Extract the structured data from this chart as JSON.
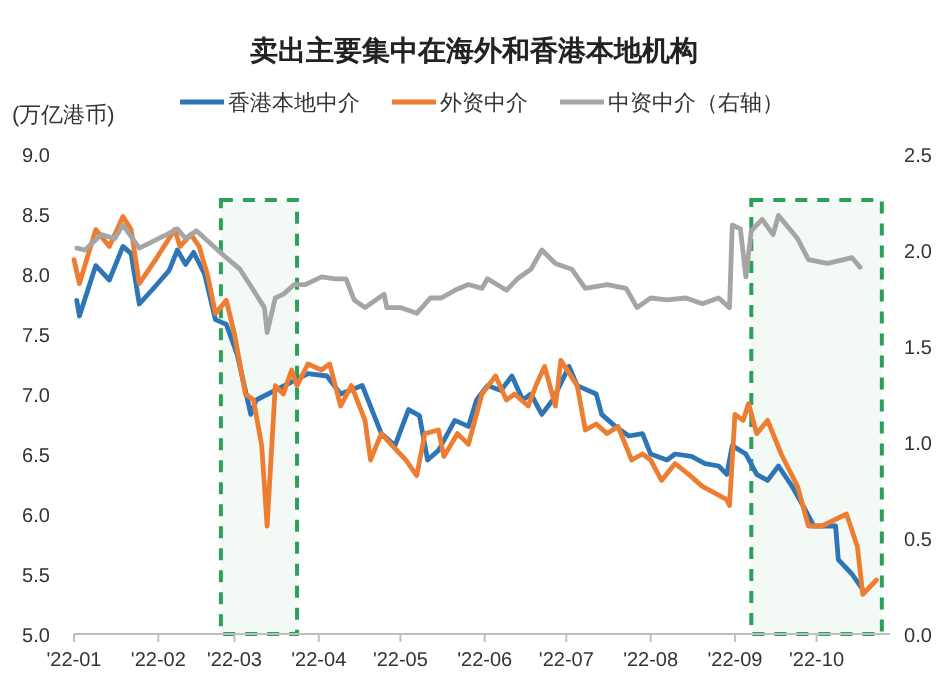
{
  "chart_data": {
    "type": "line",
    "title": "卖出主要集中在海外和香港本地机构",
    "ylabel": "(万亿港币)",
    "legend": "top",
    "xlim": [
      "2022-01-01",
      "2022-10-28"
    ],
    "xticks": [
      {
        "value": "2022-01-01",
        "label": "'22-01"
      },
      {
        "value": "2022-02-01",
        "label": "'22-02"
      },
      {
        "value": "2022-03-01",
        "label": "'22-03"
      },
      {
        "value": "2022-04-01",
        "label": "'22-04"
      },
      {
        "value": "2022-05-01",
        "label": "'22-05"
      },
      {
        "value": "2022-06-01",
        "label": "'22-06"
      },
      {
        "value": "2022-07-01",
        "label": "'22-07"
      },
      {
        "value": "2022-08-01",
        "label": "'22-08"
      },
      {
        "value": "2022-09-01",
        "label": "'22-09"
      },
      {
        "value": "2022-10-01",
        "label": "'22-10"
      }
    ],
    "ylim": [
      5,
      9
    ],
    "yticks": [
      {
        "value": 5,
        "label": "5.0"
      },
      5.5,
      {
        "value": 6,
        "label": "6.0"
      },
      6.5,
      {
        "value": 7,
        "label": "7.0"
      },
      7.5,
      {
        "value": 8,
        "label": "8.0"
      },
      8.5,
      {
        "value": 9,
        "label": "9.0"
      }
    ],
    "y2lim": [
      0,
      2.5
    ],
    "y2ticks": [
      {
        "value": 0,
        "label": "0.0"
      },
      0.5,
      {
        "value": 1,
        "label": "1.0"
      },
      1.5,
      {
        "value": 2,
        "label": "2.0"
      },
      2.5
    ],
    "bands": [
      {
        "axis": "x",
        "from": "2022-02-24",
        "to": "2022-03-24",
        "color": "#2ca05a"
      },
      {
        "axis": "x",
        "from": "2022-09-07",
        "to": "2022-10-25",
        "color": "#2ca05a"
      }
    ],
    "series": [
      {
        "name": "香港本地中介",
        "color": "#2e75b6",
        "x": [
          "2022-01-02",
          "2022-01-03",
          "2022-01-09",
          "2022-01-14",
          "2022-01-19",
          "2022-01-22",
          "2022-01-25",
          "2022-01-31",
          "2022-02-05",
          "2022-02-08",
          "2022-02-11",
          "2022-02-14",
          "2022-02-18",
          "2022-02-22",
          "2022-02-26",
          "2022-03-02",
          "2022-03-07",
          "2022-03-09",
          "2022-03-28",
          "2022-04-04",
          "2022-04-09",
          "2022-04-17",
          "2022-04-24",
          "2022-04-29",
          "2022-05-04",
          "2022-05-08",
          "2022-05-11",
          "2022-05-15",
          "2022-05-21",
          "2022-05-26",
          "2022-05-29",
          "2022-06-02",
          "2022-06-07",
          "2022-06-11",
          "2022-06-15",
          "2022-06-18",
          "2022-06-22",
          "2022-06-26",
          "2022-07-02",
          "2022-07-05",
          "2022-07-12",
          "2022-07-14",
          "2022-07-19",
          "2022-07-24",
          "2022-07-29",
          "2022-08-01",
          "2022-08-07",
          "2022-08-10",
          "2022-08-16",
          "2022-08-21",
          "2022-08-26",
          "2022-08-29",
          "2022-08-31",
          "2022-09-05",
          "2022-09-09",
          "2022-09-13",
          "2022-09-17",
          "2022-09-22",
          "2022-09-26",
          "2022-09-30",
          "2022-10-08",
          "2022-10-09",
          "2022-10-14",
          "2022-10-18"
        ],
        "values": [
          7.78,
          7.65,
          8.07,
          7.95,
          8.23,
          8.17,
          7.75,
          7.9,
          8.03,
          8.2,
          8.08,
          8.18,
          8.0,
          7.62,
          7.58,
          7.33,
          6.83,
          6.95,
          7.17,
          7.15,
          7.0,
          7.07,
          6.67,
          6.57,
          6.87,
          6.82,
          6.45,
          6.53,
          6.78,
          6.73,
          6.95,
          7.07,
          7.03,
          7.15,
          6.95,
          7.0,
          6.83,
          6.95,
          7.23,
          7.07,
          7.0,
          6.83,
          6.73,
          6.65,
          6.67,
          6.5,
          6.45,
          6.5,
          6.48,
          6.42,
          6.4,
          6.33,
          6.57,
          6.5,
          6.33,
          6.28,
          6.4,
          6.23,
          6.07,
          5.9,
          5.9,
          5.62,
          5.5,
          5.37
        ]
      },
      {
        "name": "外资中介",
        "color": "#ed7d31",
        "x": [
          "2022-01-01",
          "2022-01-03",
          "2022-01-09",
          "2022-01-14",
          "2022-01-19",
          "2022-01-22",
          "2022-01-25",
          "2022-01-31",
          "2022-02-07",
          "2022-02-09",
          "2022-02-13",
          "2022-02-16",
          "2022-02-19",
          "2022-02-22",
          "2022-02-26",
          "2022-03-01",
          "2022-03-05",
          "2022-03-08",
          "2022-03-11",
          "2022-03-13",
          "2022-03-16",
          "2022-03-19",
          "2022-03-22",
          "2022-03-24",
          "2022-03-28",
          "2022-04-02",
          "2022-04-05",
          "2022-04-09",
          "2022-04-13",
          "2022-04-18",
          "2022-04-20",
          "2022-04-24",
          "2022-04-28",
          "2022-05-03",
          "2022-05-07",
          "2022-05-10",
          "2022-05-15",
          "2022-05-17",
          "2022-05-22",
          "2022-05-26",
          "2022-05-31",
          "2022-06-05",
          "2022-06-09",
          "2022-06-12",
          "2022-06-17",
          "2022-06-20",
          "2022-06-23",
          "2022-06-27",
          "2022-06-29",
          "2022-07-05",
          "2022-07-08",
          "2022-07-12",
          "2022-07-16",
          "2022-07-20",
          "2022-07-25",
          "2022-07-29",
          "2022-08-01",
          "2022-08-05",
          "2022-08-10",
          "2022-08-15",
          "2022-08-20",
          "2022-08-25",
          "2022-08-29",
          "2022-08-30",
          "2022-09-01",
          "2022-09-04",
          "2022-09-06",
          "2022-09-09",
          "2022-09-13",
          "2022-09-18",
          "2022-09-24",
          "2022-09-28",
          "2022-10-03",
          "2022-10-12",
          "2022-10-16",
          "2022-10-18",
          "2022-10-23"
        ],
        "values": [
          8.12,
          7.92,
          8.37,
          8.23,
          8.48,
          8.37,
          7.92,
          8.12,
          8.37,
          8.23,
          8.33,
          8.23,
          8.0,
          7.67,
          7.78,
          7.5,
          7.0,
          6.95,
          6.57,
          5.9,
          7.07,
          7.0,
          7.2,
          7.07,
          7.25,
          7.2,
          7.25,
          6.9,
          7.07,
          6.78,
          6.45,
          6.67,
          6.57,
          6.45,
          6.32,
          6.67,
          6.7,
          6.48,
          6.67,
          6.58,
          7.0,
          7.15,
          6.95,
          7.0,
          6.9,
          7.08,
          7.23,
          6.9,
          7.28,
          7.07,
          6.7,
          6.75,
          6.67,
          6.73,
          6.45,
          6.5,
          6.45,
          6.28,
          6.42,
          6.33,
          6.23,
          6.17,
          6.12,
          6.07,
          6.83,
          6.78,
          6.92,
          6.67,
          6.78,
          6.5,
          6.23,
          5.9,
          5.9,
          6.0,
          5.73,
          5.33,
          5.45
        ]
      },
      {
        "name": "中资中介（右轴）",
        "color": "#a5a5a5",
        "axis": "y2",
        "x": [
          "2022-01-02",
          "2022-01-05",
          "2022-01-11",
          "2022-01-16",
          "2022-01-19",
          "2022-01-25",
          "2022-02-04",
          "2022-02-08",
          "2022-02-11",
          "2022-02-15",
          "2022-02-22",
          "2022-02-26",
          "2022-03-03",
          "2022-03-08",
          "2022-03-12",
          "2022-03-13",
          "2022-03-16",
          "2022-03-19",
          "2022-03-23",
          "2022-03-27",
          "2022-04-02",
          "2022-04-07",
          "2022-04-11",
          "2022-04-14",
          "2022-04-18",
          "2022-04-25",
          "2022-04-26",
          "2022-05-01",
          "2022-05-07",
          "2022-05-12",
          "2022-05-16",
          "2022-05-21",
          "2022-05-26",
          "2022-05-31",
          "2022-06-02",
          "2022-06-09",
          "2022-06-13",
          "2022-06-18",
          "2022-06-22",
          "2022-06-27",
          "2022-07-03",
          "2022-07-08",
          "2022-07-16",
          "2022-07-23",
          "2022-07-27",
          "2022-08-01",
          "2022-08-07",
          "2022-08-14",
          "2022-08-20",
          "2022-08-26",
          "2022-08-30",
          "2022-08-31",
          "2022-09-03",
          "2022-09-05",
          "2022-09-07",
          "2022-09-11",
          "2022-09-15",
          "2022-09-17",
          "2022-09-24",
          "2022-09-28",
          "2022-10-05",
          "2022-10-11",
          "2022-10-14",
          "2022-10-17"
        ],
        "values": [
          2.01,
          2.0,
          2.08,
          2.06,
          2.13,
          2.01,
          2.08,
          2.11,
          2.06,
          2.1,
          2.01,
          1.96,
          1.9,
          1.79,
          1.7,
          1.57,
          1.75,
          1.77,
          1.82,
          1.82,
          1.86,
          1.85,
          1.85,
          1.74,
          1.7,
          1.77,
          1.7,
          1.7,
          1.67,
          1.75,
          1.75,
          1.79,
          1.82,
          1.8,
          1.85,
          1.79,
          1.85,
          1.9,
          2.0,
          1.93,
          1.9,
          1.8,
          1.82,
          1.8,
          1.7,
          1.75,
          1.74,
          1.75,
          1.72,
          1.75,
          1.7,
          2.13,
          2.11,
          1.86,
          2.1,
          2.16,
          2.08,
          2.18,
          2.06,
          1.95,
          1.93,
          1.95,
          1.96,
          1.91
        ]
      }
    ]
  }
}
